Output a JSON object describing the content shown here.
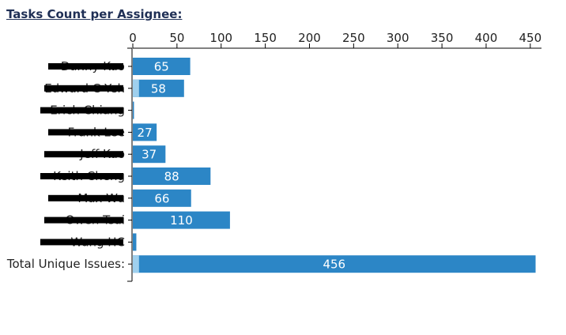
{
  "chart_data": {
    "type": "bar",
    "orientation": "horizontal",
    "title": "Tasks Count per Assignee:",
    "categories": [
      "Danny Kuo",
      "Edward C Yeh",
      "Erich Chiang",
      "Frank Lee",
      "Jeff Kao",
      "Keith Cheng",
      "Max Wu",
      "Owen Tsai",
      "Wang HC",
      "Total Unique Issues:"
    ],
    "values": [
      65,
      58,
      1,
      27,
      37,
      88,
      66,
      110,
      4,
      456
    ],
    "highlight_values": [
      0,
      7,
      0,
      0,
      0,
      0,
      0,
      0,
      0,
      7
    ],
    "data_labels": [
      "65",
      "58",
      "",
      "27",
      "37",
      "88",
      "66",
      "110",
      "",
      "456"
    ],
    "redacted_categories": [
      true,
      true,
      true,
      true,
      true,
      true,
      true,
      true,
      true,
      false
    ],
    "xticks": [
      0,
      50,
      100,
      150,
      200,
      250,
      300,
      350,
      400,
      450
    ],
    "xlim": [
      0,
      460
    ],
    "axis_position": "top",
    "grid": false,
    "colors": {
      "bar": "#2c86c6",
      "highlight": "#9fd0ee",
      "text": "#222222",
      "redaction": "#000000",
      "title": "#1f2f55"
    }
  }
}
